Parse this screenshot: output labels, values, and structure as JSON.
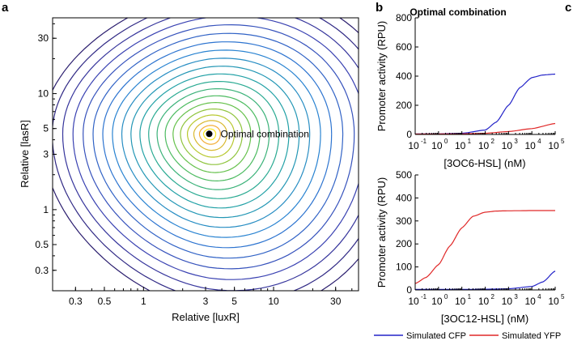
{
  "panel_labels": {
    "a": "a",
    "b": "b",
    "c": "c"
  },
  "colors": {
    "axis": "#000000",
    "cfp": "#2323c8",
    "yfp": "#e02828",
    "contour_low": "#2a1d6e",
    "contour_mid": "#21a6a0",
    "contour_high": "#f9e51d"
  },
  "chart_data": [
    {
      "id": "contour",
      "type": "contour",
      "xlabel": "Relative [luxR]",
      "ylabel": "Relative [lasR]",
      "xscale": "log",
      "yscale": "log",
      "xlim": [
        0.2,
        45
      ],
      "ylim": [
        0.2,
        45
      ],
      "x_ticks": [
        0.3,
        0.5,
        1,
        3,
        5,
        10,
        30
      ],
      "x_tick_labels": [
        "0.3",
        "0.5",
        "1",
        "3",
        "5",
        "10",
        "30"
      ],
      "y_ticks": [
        0.3,
        0.5,
        1,
        3,
        5,
        10,
        30
      ],
      "y_tick_labels": [
        "0.3",
        "0.5",
        "1",
        "3",
        "5",
        "10",
        "30"
      ],
      "optimum": {
        "x": 3.2,
        "y": 4.5,
        "label": "Optimal combination"
      },
      "levels": 20
    },
    {
      "id": "top",
      "type": "line",
      "title": "Optimal combination",
      "xlabel": "[3OC6-HSL] (nM)",
      "ylabel": "Promoter activity (RPU)",
      "xscale": "log",
      "xlim": [
        0.1,
        100000
      ],
      "ylim": [
        0,
        800
      ],
      "x_ticks": [
        0.1,
        1,
        10,
        100,
        1000,
        10000,
        100000
      ],
      "x_tick_labels": [
        [
          "10",
          "-1"
        ],
        [
          "10",
          "0"
        ],
        [
          "10",
          "1"
        ],
        [
          "10",
          "2"
        ],
        [
          "10",
          "3"
        ],
        [
          "10",
          "4"
        ],
        [
          "10",
          "5"
        ]
      ],
      "y_ticks": [
        0,
        200,
        400,
        600,
        800
      ],
      "y_tick_labels": [
        "0",
        "200",
        "400",
        "600",
        "800"
      ],
      "series": [
        {
          "name": "Simulated CFP",
          "x": [
            0.1,
            1,
            10,
            100,
            300,
            1000,
            3000,
            10000,
            30000,
            100000
          ],
          "y": [
            3,
            4,
            8,
            30,
            85,
            200,
            320,
            390,
            408,
            414
          ]
        },
        {
          "name": "Simulated YFP",
          "x": [
            0.1,
            1,
            10,
            100,
            1000,
            10000,
            100000
          ],
          "y": [
            3,
            3,
            4,
            8,
            20,
            40,
            75
          ]
        }
      ]
    },
    {
      "id": "bottom",
      "type": "line",
      "xlabel": "[3OC12-HSL] (nM)",
      "ylabel": "Promoter activity (RPU)",
      "xscale": "log",
      "xlim": [
        0.1,
        100000
      ],
      "ylim": [
        0,
        500
      ],
      "x_ticks": [
        0.1,
        1,
        10,
        100,
        1000,
        10000,
        100000
      ],
      "x_tick_labels": [
        [
          "10",
          "-1"
        ],
        [
          "10",
          "0"
        ],
        [
          "10",
          "1"
        ],
        [
          "10",
          "2"
        ],
        [
          "10",
          "3"
        ],
        [
          "10",
          "4"
        ],
        [
          "10",
          "5"
        ]
      ],
      "y_ticks": [
        0,
        100,
        200,
        300,
        400,
        500
      ],
      "y_tick_labels": [
        "0",
        "100",
        "200",
        "300",
        "400",
        "500"
      ],
      "series": [
        {
          "name": "Simulated CFP",
          "x": [
            0.1,
            1,
            10,
            100,
            1000,
            10000,
            30000,
            100000
          ],
          "y": [
            2,
            2,
            2,
            3,
            5,
            15,
            35,
            82
          ]
        },
        {
          "name": "Simulated YFP",
          "x": [
            0.1,
            0.3,
            1,
            3,
            10,
            30,
            100,
            300,
            1000,
            10000,
            100000
          ],
          "y": [
            28,
            55,
            110,
            190,
            270,
            320,
            338,
            343,
            344,
            345,
            345
          ]
        }
      ]
    }
  ],
  "legend": [
    {
      "label": "Simulated CFP",
      "color": "#2323c8"
    },
    {
      "label": "Simulated YFP",
      "color": "#e02828"
    }
  ]
}
